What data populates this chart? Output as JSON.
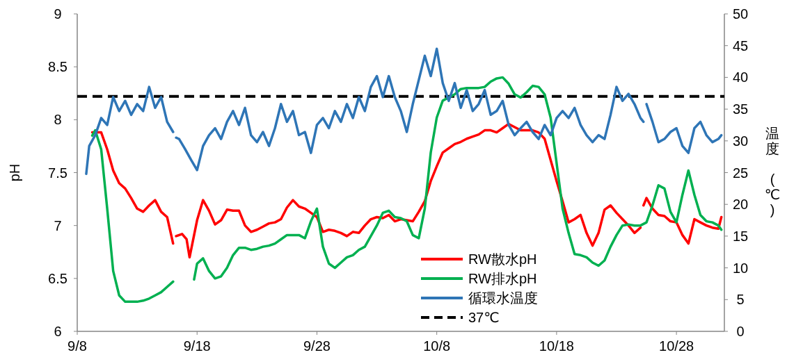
{
  "chart_data": {
    "type": "line",
    "ylabel": "pH",
    "y2label": "温度 (℃)",
    "xlim": [
      "--09-08",
      "--11-01"
    ],
    "xticks": [
      {
        "value": "--09-08",
        "label": "9/8"
      },
      {
        "value": "--09-18",
        "label": "9/18"
      },
      {
        "value": "--09-28",
        "label": "9/28"
      },
      {
        "value": "--10-08",
        "label": "10/8"
      },
      {
        "value": "--10-18",
        "label": "10/18"
      },
      {
        "value": "--10-28",
        "label": "10/28"
      }
    ],
    "ylim": [
      6,
      9
    ],
    "yticks": [
      6,
      6.5,
      7,
      7.5,
      8,
      8.5,
      9
    ],
    "y2lim": [
      0,
      50
    ],
    "y2ticks": [
      0,
      5,
      10,
      15,
      20,
      25,
      30,
      35,
      40,
      45,
      50
    ],
    "grid": false,
    "legend": "bottom",
    "marker": "none",
    "line_style": "solid",
    "series": [
      {
        "name": "RW散水pH",
        "color": "#ff0000",
        "x": [
          "--09-09T06:00",
          "--09-10",
          "--09-10T12:00",
          "--09-11",
          "--09-11T12:00",
          "--09-12",
          "--09-12T12:00",
          "--09-13",
          "--09-13T12:00",
          "--09-14",
          "--09-14T12:00",
          "--09-15",
          "--09-15T12:00",
          "--09-16",
          "--09-16T03:00",
          "--09-16T06:00",
          "--09-16T18:00",
          "--09-17T03:00",
          "--09-17T09:00",
          "--09-18",
          "--09-18T12:00",
          "--09-19",
          "--09-19T12:00",
          "--09-20",
          "--09-20T12:00",
          "--09-21",
          "--09-21T12:00",
          "--09-22",
          "--09-22T12:00",
          "--09-23",
          "--09-23T12:00",
          "--09-24",
          "--09-24T12:00",
          "--09-25",
          "--09-25T12:00",
          "--09-26",
          "--09-26T12:00",
          "--09-27",
          "--09-27T12:00",
          "--09-28",
          "--09-28T12:00",
          "--09-29",
          "--09-29T12:00",
          "--09-30",
          "--09-30T12:00",
          "--10-01",
          "--10-01T12:00",
          "--10-02",
          "--10-02T12:00",
          "--10-03",
          "--10-03T12:00",
          "--10-04",
          "--10-04T12:00",
          "--10-05",
          "--10-05T12:00",
          "--10-06",
          "--10-06T12:00",
          "--10-07",
          "--10-07T12:00",
          "--10-08",
          "--10-08T12:00",
          "--10-09",
          "--10-09T12:00",
          "--10-10",
          "--10-10T12:00",
          "--10-11",
          "--10-11T12:00",
          "--10-12",
          "--10-12T12:00",
          "--10-13",
          "--10-13T12:00",
          "--10-14",
          "--10-14T12:00",
          "--10-15",
          "--10-15T12:00",
          "--10-16",
          "--10-16T12:00",
          "--10-17",
          "--10-17T12:00",
          "--10-18",
          "--10-18T12:00",
          "--10-19",
          "--10-19T12:00",
          "--10-20",
          "--10-20T12:00",
          "--10-21",
          "--10-21T12:00",
          "--10-22",
          "--10-22T12:00",
          "--10-23",
          "--10-23T12:00",
          "--10-24",
          "--10-24T12:00",
          "--10-25",
          "--10-25T03:00",
          "--10-25T06:00",
          "--10-25T12:00",
          "--10-26",
          "--10-26T12:00",
          "--10-27",
          "--10-27T12:00",
          "--10-28",
          "--10-28T12:00",
          "--10-29",
          "--10-29T12:00",
          "--10-30",
          "--10-30T12:00",
          "--10-31",
          "--10-31T12:00",
          "--10-31T18:00"
        ],
        "values": [
          7.88,
          7.88,
          7.72,
          7.52,
          7.4,
          7.35,
          7.26,
          7.16,
          7.13,
          7.19,
          7.24,
          7.13,
          7.08,
          6.83,
          null,
          6.9,
          6.92,
          6.87,
          6.7,
          7.05,
          7.24,
          7.14,
          7.01,
          7.05,
          7.15,
          7.14,
          7.14,
          7.0,
          6.94,
          6.96,
          6.99,
          7.02,
          7.03,
          7.06,
          7.17,
          7.24,
          7.18,
          7.16,
          7.12,
          7.08,
          6.94,
          6.96,
          6.95,
          6.93,
          6.9,
          6.94,
          6.93,
          7.0,
          7.06,
          7.08,
          7.07,
          7.1,
          7.04,
          7.06,
          7.05,
          7.04,
          7.13,
          7.23,
          7.42,
          7.56,
          7.69,
          7.73,
          7.77,
          7.79,
          7.82,
          7.84,
          7.86,
          7.9,
          7.9,
          7.88,
          7.92,
          7.96,
          7.93,
          7.9,
          7.9,
          7.9,
          7.88,
          7.82,
          7.62,
          7.42,
          7.23,
          7.03,
          7.06,
          7.1,
          6.93,
          6.81,
          6.93,
          7.15,
          7.19,
          7.12,
          7.06,
          7.0,
          6.93,
          6.98,
          null,
          7.19,
          7.26,
          7.16,
          7.1,
          7.09,
          7.04,
          7.03,
          6.91,
          6.83,
          7.06,
          7.03,
          7.0,
          6.98,
          6.97,
          7.08
        ]
      },
      {
        "name": "RW排水pH",
        "color": "#00b050",
        "x": [
          "--09-09T06:00",
          "--09-09T12:00",
          "--09-10",
          "--09-10T12:00",
          "--09-11",
          "--09-11T12:00",
          "--09-12",
          "--09-12T12:00",
          "--09-13",
          "--09-13T12:00",
          "--09-14",
          "--09-14T12:00",
          "--09-15",
          "--09-15T12:00",
          "--09-16",
          "--09-17",
          "--09-17T18:00",
          "--09-18",
          "--09-18T12:00",
          "--09-19",
          "--09-19T12:00",
          "--09-20",
          "--09-20T12:00",
          "--09-21",
          "--09-21T12:00",
          "--09-22",
          "--09-22T12:00",
          "--09-23",
          "--09-23T12:00",
          "--09-24",
          "--09-24T12:00",
          "--09-25",
          "--09-25T12:00",
          "--09-26",
          "--09-26T12:00",
          "--09-27",
          "--09-27T12:00",
          "--09-28",
          "--09-28T12:00",
          "--09-29",
          "--09-29T12:00",
          "--09-30",
          "--09-30T12:00",
          "--10-01",
          "--10-01T12:00",
          "--10-02",
          "--10-02T12:00",
          "--10-03",
          "--10-03T12:00",
          "--10-04",
          "--10-04T12:00",
          "--10-05",
          "--10-05T12:00",
          "--10-06",
          "--10-06T12:00",
          "--10-07",
          "--10-07T12:00",
          "--10-08",
          "--10-08T12:00",
          "--10-09",
          "--10-09T12:00",
          "--10-10",
          "--10-10T12:00",
          "--10-11",
          "--10-11T12:00",
          "--10-12",
          "--10-12T12:00",
          "--10-13",
          "--10-13T12:00",
          "--10-14",
          "--10-14T12:00",
          "--10-15",
          "--10-15T12:00",
          "--10-16",
          "--10-16T12:00",
          "--10-17",
          "--10-17T12:00",
          "--10-18",
          "--10-18T12:00",
          "--10-19",
          "--10-19T12:00",
          "--10-20",
          "--10-20T12:00",
          "--10-21",
          "--10-21T12:00",
          "--10-22",
          "--10-22T12:00",
          "--10-23",
          "--10-23T12:00",
          "--10-24",
          "--10-24T12:00",
          "--10-25",
          "--10-25T12:00",
          "--10-26",
          "--10-26T12:00",
          "--10-27",
          "--10-27T12:00",
          "--10-28",
          "--10-28T12:00",
          "--10-29",
          "--10-29T12:00",
          "--10-30",
          "--10-30T12:00",
          "--10-31",
          "--10-31T12:00",
          "--10-31T18:00"
        ],
        "values": [
          7.85,
          7.9,
          7.72,
          7.16,
          6.57,
          6.34,
          6.28,
          6.28,
          6.28,
          6.29,
          6.31,
          6.34,
          6.37,
          6.42,
          6.47,
          null,
          6.49,
          6.64,
          6.69,
          6.57,
          6.5,
          6.52,
          6.6,
          6.72,
          6.79,
          6.79,
          6.77,
          6.78,
          6.8,
          6.81,
          6.83,
          6.87,
          6.91,
          6.91,
          6.91,
          6.88,
          7.04,
          7.16,
          6.8,
          6.64,
          6.6,
          6.65,
          6.7,
          6.72,
          6.77,
          6.8,
          6.9,
          7.0,
          7.12,
          7.14,
          7.08,
          7.07,
          7.04,
          6.91,
          6.88,
          7.16,
          7.69,
          8.02,
          8.18,
          8.21,
          8.24,
          8.29,
          8.3,
          8.3,
          8.3,
          8.31,
          8.36,
          8.39,
          8.4,
          8.34,
          8.24,
          8.21,
          8.26,
          8.32,
          8.31,
          8.24,
          8.02,
          7.59,
          7.16,
          6.93,
          6.73,
          6.72,
          6.7,
          6.65,
          6.62,
          6.67,
          6.8,
          6.91,
          7.0,
          7.01,
          7.0,
          7.0,
          7.03,
          7.19,
          7.38,
          7.35,
          7.13,
          7.03,
          7.29,
          7.52,
          7.29,
          7.1,
          7.04,
          7.03,
          7.0,
          6.96
        ]
      },
      {
        "name": "循環水温度",
        "color": "#2e75b6",
        "axis": "y2",
        "x": [
          "--09-08T18:00",
          "--09-09",
          "--09-09T12:00",
          "--09-10",
          "--09-10T12:00",
          "--09-11",
          "--09-11T12:00",
          "--09-12",
          "--09-12T12:00",
          "--09-13",
          "--09-13T12:00",
          "--09-14",
          "--09-14T12:00",
          "--09-15",
          "--09-15T12:00",
          "--09-16",
          "--09-16T03:00",
          "--09-16T06:00",
          "--09-16T12:00",
          "--09-17",
          "--09-17T12:00",
          "--09-18",
          "--09-18T12:00",
          "--09-19",
          "--09-19T12:00",
          "--09-20",
          "--09-20T12:00",
          "--09-21",
          "--09-21T12:00",
          "--09-22",
          "--09-22T12:00",
          "--09-23",
          "--09-23T12:00",
          "--09-24",
          "--09-24T12:00",
          "--09-25",
          "--09-25T12:00",
          "--09-26",
          "--09-26T12:00",
          "--09-27",
          "--09-27T12:00",
          "--09-28",
          "--09-28T12:00",
          "--09-29",
          "--09-29T12:00",
          "--09-30",
          "--09-30T12:00",
          "--10-01",
          "--10-01T12:00",
          "--10-02",
          "--10-02T12:00",
          "--10-03",
          "--10-03T12:00",
          "--10-04",
          "--10-04T12:00",
          "--10-05",
          "--10-05T12:00",
          "--10-06",
          "--10-06T12:00",
          "--10-07",
          "--10-07T12:00",
          "--10-08",
          "--10-08T12:00",
          "--10-09",
          "--10-09T12:00",
          "--10-10",
          "--10-10T12:00",
          "--10-11",
          "--10-11T12:00",
          "--10-12",
          "--10-12T12:00",
          "--10-13",
          "--10-13T12:00",
          "--10-14",
          "--10-14T12:00",
          "--10-15",
          "--10-15T12:00",
          "--10-16",
          "--10-16T12:00",
          "--10-17",
          "--10-17T12:00",
          "--10-18",
          "--10-18T12:00",
          "--10-19",
          "--10-19T12:00",
          "--10-20",
          "--10-20T12:00",
          "--10-21",
          "--10-21T12:00",
          "--10-22",
          "--10-22T12:00",
          "--10-23",
          "--10-23T12:00",
          "--10-24",
          "--10-24T12:00",
          "--10-25",
          "--10-25T06:00",
          "--10-25T09:00",
          "--10-25T12:00",
          "--10-26",
          "--10-26T12:00",
          "--10-27",
          "--10-27T12:00",
          "--10-28",
          "--10-28T12:00",
          "--10-29",
          "--10-29T12:00",
          "--10-30",
          "--10-30T12:00",
          "--10-31",
          "--10-31T12:00",
          "--10-31T18:00"
        ],
        "values": [
          24.8,
          29.2,
          30.9,
          33.6,
          32.5,
          36.9,
          34.7,
          36.3,
          34.1,
          35.8,
          34.7,
          38.5,
          35.2,
          36.9,
          33.0,
          31.4,
          null,
          30.5,
          30.3,
          28.7,
          27.0,
          25.4,
          29.2,
          30.9,
          32.0,
          30.3,
          33.0,
          34.7,
          32.5,
          35.2,
          30.9,
          29.8,
          31.4,
          29.2,
          32.0,
          35.8,
          33.0,
          34.7,
          30.9,
          31.4,
          28.1,
          32.5,
          33.6,
          32.0,
          34.7,
          33.0,
          35.8,
          33.6,
          36.9,
          34.7,
          38.5,
          40.2,
          36.9,
          40.2,
          36.9,
          34.7,
          31.4,
          35.8,
          39.6,
          43.4,
          40.2,
          44.5,
          39.1,
          36.3,
          39.1,
          35.2,
          38.0,
          34.7,
          35.8,
          38.0,
          34.1,
          34.7,
          36.3,
          32.5,
          30.9,
          32.0,
          33.0,
          31.4,
          30.3,
          32.5,
          30.9,
          33.6,
          34.7,
          33.6,
          35.2,
          32.5,
          30.9,
          29.8,
          30.9,
          30.3,
          34.1,
          38.5,
          36.3,
          37.4,
          35.8,
          33.6,
          33.0,
          null,
          35.8,
          33.0,
          29.8,
          30.3,
          31.4,
          32.0,
          29.2,
          28.1,
          32.0,
          33.0,
          30.9,
          29.8,
          30.3,
          30.9
        ]
      }
    ],
    "ref_lines": [
      {
        "axis": "y2",
        "value": 37,
        "label": "37℃",
        "color": "#000000",
        "line_style": "dashed"
      }
    ]
  }
}
